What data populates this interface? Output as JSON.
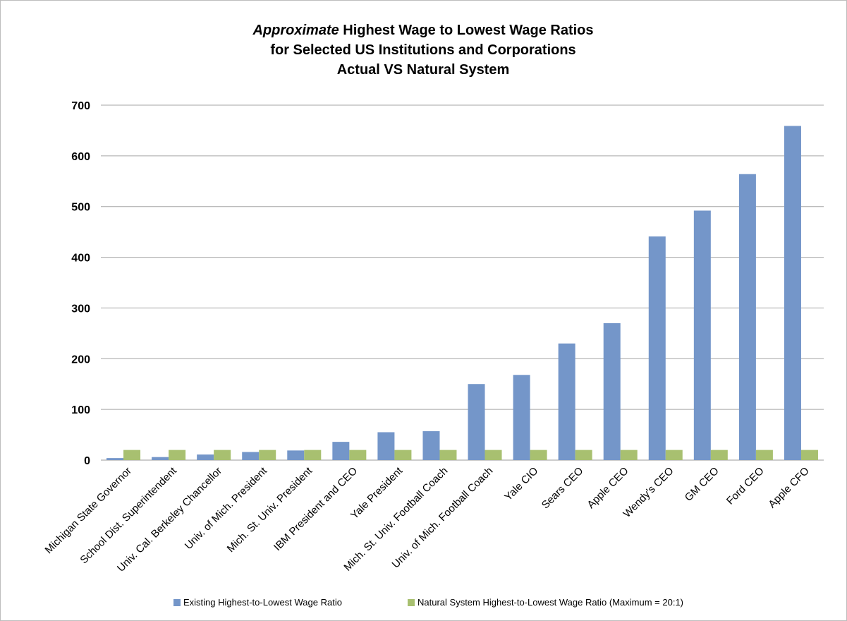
{
  "chart_data": {
    "type": "bar",
    "title_lines": [
      {
        "italic": "Approximate",
        "rest": " Highest Wage to Lowest Wage Ratios"
      },
      {
        "italic": "",
        "rest": "for Selected US Institutions and Corporations"
      },
      {
        "italic": "",
        "rest": "Actual VS  Natural System"
      }
    ],
    "categories": [
      "Michigan State Governor",
      "School Dist. Superintendent",
      "Univ. Cal. Berkeley Chancellor",
      "Univ. of Mich. President",
      "Mich. St. Univ. President",
      "IBM President and CEO",
      "Yale President",
      "Mich. St. Univ. Football Coach",
      "Univ. of Mich. Football Coach",
      "Yale CIO",
      "Sears CEO",
      "Apple CEO",
      "Wendy's CEO",
      "GM CEO",
      "Ford CEO",
      "Apple CFO"
    ],
    "series": [
      {
        "name": "Existing Highest-to-Lowest Wage Ratio",
        "color": "#7496c9",
        "values": [
          4,
          6,
          11,
          16,
          19,
          36,
          55,
          57,
          150,
          168,
          230,
          270,
          441,
          492,
          564,
          659
        ]
      },
      {
        "name": "Natural System Highest-to-Lowest Wage Ratio (Maximum = 20:1)",
        "color": "#a8c070",
        "values": [
          20,
          20,
          20,
          20,
          20,
          20,
          20,
          20,
          20,
          20,
          20,
          20,
          20,
          20,
          20,
          20
        ]
      }
    ],
    "xlabel": "",
    "ylabel": "",
    "ylim": [
      0,
      700
    ],
    "yticks": [
      "0",
      "100",
      "200",
      "300",
      "400",
      "500",
      "600",
      "700"
    ],
    "grid": true,
    "legend_position": "bottom"
  }
}
